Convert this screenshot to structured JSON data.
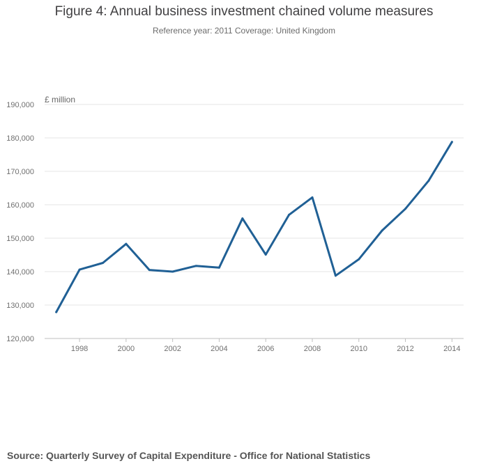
{
  "chart_data": {
    "type": "line",
    "title": "Figure 4: Annual business investment chained volume measures",
    "subtitle": "Reference year: 2011 Coverage: United Kingdom",
    "ylabel": "£ million",
    "xlabel": "",
    "x": [
      1997,
      1998,
      1999,
      2000,
      2001,
      2002,
      2003,
      2004,
      2005,
      2006,
      2007,
      2008,
      2009,
      2010,
      2011,
      2012,
      2013,
      2014
    ],
    "series": [
      {
        "name": "Business investment",
        "values": [
          127900,
          140600,
          142600,
          148300,
          140500,
          140000,
          141700,
          141200,
          155900,
          145100,
          157000,
          162200,
          138800,
          143700,
          152300,
          158800,
          167200,
          178800
        ]
      }
    ],
    "ylim": [
      120000,
      190000
    ],
    "yticks": [
      120000,
      130000,
      140000,
      150000,
      160000,
      170000,
      180000,
      190000
    ],
    "ytick_labels": [
      "120,000",
      "130,000",
      "140,000",
      "150,000",
      "160,000",
      "170,000",
      "180,000",
      "190,000"
    ],
    "xticks": [
      1998,
      2000,
      2002,
      2004,
      2006,
      2008,
      2010,
      2012,
      2014
    ],
    "xtick_labels": [
      "1998",
      "2000",
      "2002",
      "2004",
      "2006",
      "2008",
      "2010",
      "2012",
      "2014"
    ],
    "grid": true,
    "line_color": "#206095"
  },
  "source": "Source: Quarterly Survey of Capital Expenditure - Office for National Statistics"
}
